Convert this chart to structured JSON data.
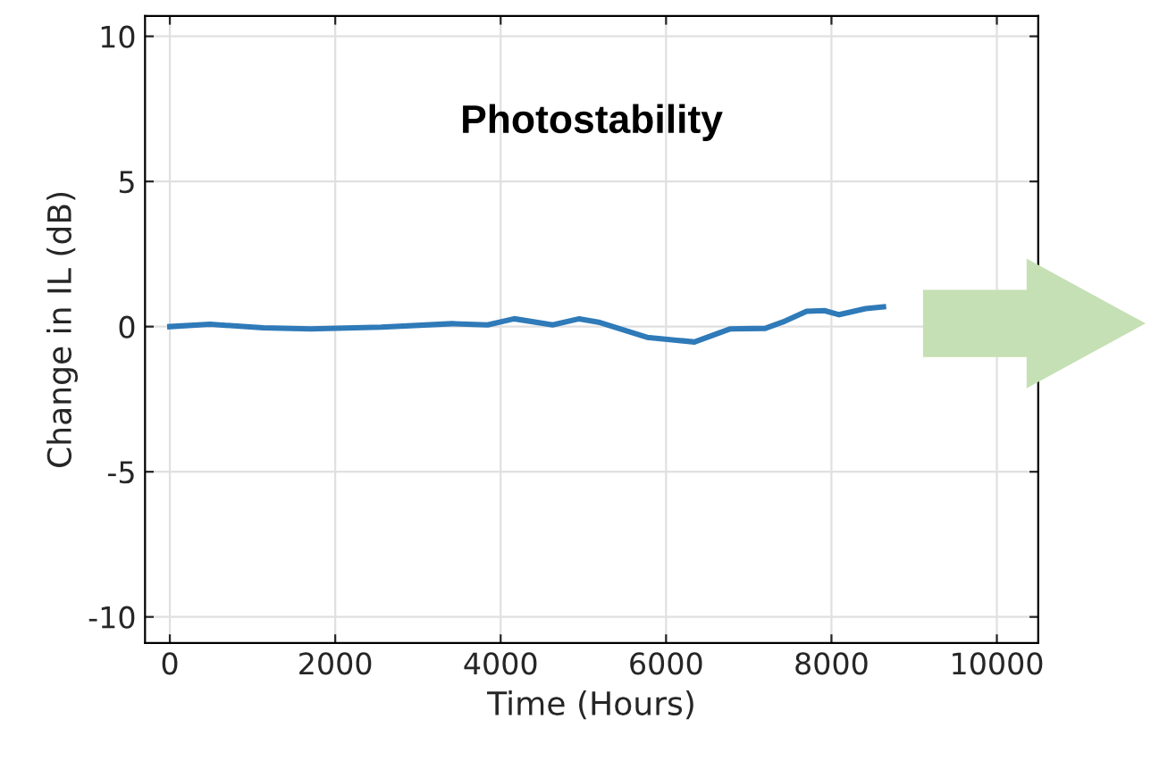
{
  "chart_data": {
    "type": "line",
    "title": "Photostability",
    "xlabel": "Time (Hours)",
    "ylabel": "Change in IL (dB)",
    "x": [
      0,
      486,
      1129,
      1700,
      2557,
      3414,
      3843,
      4164,
      4629,
      4950,
      5200,
      5771,
      6129,
      6343,
      6771,
      7200,
      7414,
      7700,
      7914,
      8093,
      8414,
      8629
    ],
    "series": [
      {
        "color": "#2f7ab8",
        "values": [
          0,
          0.08,
          -0.04,
          -0.08,
          -0.02,
          0.1,
          0.06,
          0.27,
          0.06,
          0.27,
          0.14,
          -0.37,
          -0.47,
          -0.53,
          -0.08,
          -0.06,
          0.16,
          0.53,
          0.55,
          0.41,
          0.62,
          0.68
        ]
      }
    ],
    "xlim": [
      -300,
      10500
    ],
    "xticks": [
      0,
      2000,
      4000,
      6000,
      8000,
      10000
    ],
    "ylim": [
      -10.9,
      10.7
    ],
    "yticks": [
      -10,
      -5,
      0,
      5,
      10
    ],
    "grid": true,
    "marker": "none",
    "line_style": "solid"
  }
}
